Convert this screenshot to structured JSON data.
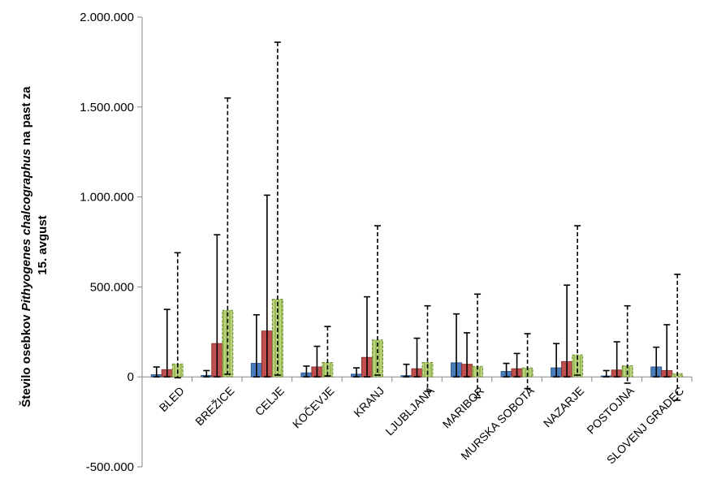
{
  "chart_data": {
    "type": "bar",
    "ylabel_line1_pre": "Število osebkov ",
    "ylabel_line1_italic": "Pithyogenes chalcographus",
    "ylabel_line1_post": " na past za",
    "ylabel_line2": "15. avgust",
    "ylim": [
      -500000,
      2000000
    ],
    "yticks": [
      -500000,
      0,
      500000,
      1000000,
      1500000,
      2000000
    ],
    "ytick_labels": [
      "-500.000",
      "0",
      "500.000",
      "1.000.000",
      "1.500.000",
      "2.000.000"
    ],
    "categories": [
      "BLED",
      "BREŽICE",
      "CELJE",
      "KOČEVJE",
      "KRANJ",
      "LJUBLJANA",
      "MARIBOR",
      "MURSKA SOBOTA",
      "NAZARJE",
      "POSTOJNA",
      "SLOVENJ GRADEC"
    ],
    "series": [
      {
        "values": [
          12000,
          8000,
          75000,
          22000,
          15000,
          7000,
          78000,
          30000,
          50000,
          5000,
          55000
        ],
        "err_high": [
          55000,
          35000,
          345000,
          60000,
          50000,
          70000,
          350000,
          75000,
          185000,
          35000,
          165000
        ],
        "err_low": [
          0,
          0,
          0,
          0,
          0,
          0,
          0,
          0,
          0,
          0,
          0
        ],
        "color": "#4a7ebb",
        "edge": "#2c5a8f",
        "dashed": false
      },
      {
        "values": [
          40000,
          185000,
          255000,
          55000,
          108000,
          45000,
          70000,
          45000,
          85000,
          38000,
          35000
        ],
        "err_high": [
          375000,
          790000,
          1010000,
          170000,
          445000,
          215000,
          245000,
          130000,
          510000,
          195000,
          290000
        ],
        "err_low": [
          0,
          0,
          0,
          0,
          0,
          0,
          0,
          0,
          0,
          0,
          0
        ],
        "color": "#c0504d",
        "edge": "#8c2f2d",
        "dashed": false
      },
      {
        "values": [
          72000,
          370000,
          432000,
          80000,
          205000,
          80000,
          58000,
          50000,
          122000,
          62000,
          18000
        ],
        "err_high": [
          690000,
          1550000,
          1860000,
          280000,
          840000,
          395000,
          460000,
          240000,
          840000,
          395000,
          570000
        ],
        "err_low": [
          -5000,
          15000,
          10000,
          5000,
          10000,
          -80000,
          -115000,
          -65000,
          10000,
          -35000,
          -130000
        ],
        "color": "#9bbb59",
        "edge": "#6c8a35",
        "dashed": true
      }
    ]
  }
}
